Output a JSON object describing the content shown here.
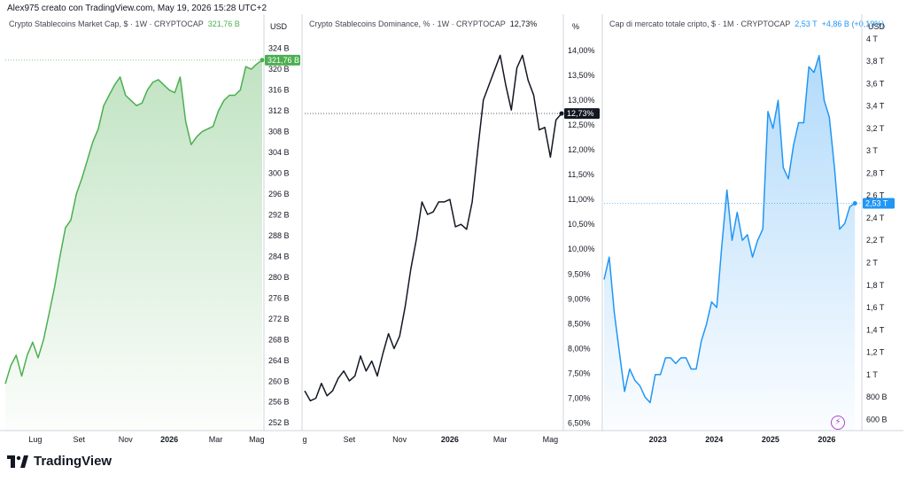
{
  "header": {
    "text": "Alex975 creato con TradingView.com, May 19, 2026 15:28 UTC+2"
  },
  "brand": {
    "name": "TradingView",
    "logo_mark": "17"
  },
  "icons": {
    "bolt": "⚡"
  },
  "chart_data": [
    {
      "type": "area",
      "title": "Crypto Stablecoins Market Cap, $ · 1W · CRYPTOCAP",
      "last_label": "321,76 B",
      "last_value": 321.76,
      "unit": "USD",
      "color": "#4caf50",
      "price_tag_color": "#4caf50",
      "ylim": [
        250.5,
        326.5
      ],
      "yticks": [
        252,
        256,
        260,
        264,
        268,
        272,
        276,
        280,
        284,
        288,
        292,
        296,
        300,
        304,
        308,
        312,
        316,
        320,
        324
      ],
      "ytick_suffix": " B",
      "xlim": [
        0,
        47
      ],
      "x_ticks": [
        {
          "x": 5.5,
          "label": "Lug"
        },
        {
          "x": 13.5,
          "label": "Set"
        },
        {
          "x": 22,
          "label": "Nov"
        },
        {
          "x": 30,
          "label": "2026"
        },
        {
          "x": 38.5,
          "label": "Mar"
        },
        {
          "x": 46,
          "label": "Mag"
        }
      ],
      "values": [
        259.5,
        263,
        265,
        261,
        265,
        267.5,
        264.5,
        268,
        273,
        278,
        284,
        289.5,
        291,
        296,
        299,
        302.5,
        306,
        308.5,
        313,
        315,
        317,
        318.5,
        315,
        314,
        313,
        313.5,
        316,
        317.5,
        318,
        317,
        316,
        315.5,
        318.5,
        310,
        305.5,
        307,
        308,
        308.5,
        309,
        312,
        314,
        315,
        315,
        316,
        320.5,
        320,
        321,
        321.76
      ]
    },
    {
      "type": "line",
      "title": "Crypto Stablecoins Dominance, % · 1W · CRYPTOCAP",
      "last_label": "12,73%",
      "last_value": 12.73,
      "unit": "%",
      "color": "#131722",
      "price_tag_color": "#131722",
      "ylim": [
        6.35,
        14.3
      ],
      "yticks": [
        6.5,
        7.0,
        7.5,
        8.0,
        8.5,
        9.0,
        9.5,
        10.0,
        10.5,
        11.0,
        11.5,
        12.0,
        12.5,
        13.0,
        13.5,
        14.0
      ],
      "ytick_format": "percent2",
      "xlim": [
        0,
        46
      ],
      "x_ticks": [
        {
          "x": 0,
          "label": "g"
        },
        {
          "x": 8,
          "label": "Set"
        },
        {
          "x": 17,
          "label": "Nov"
        },
        {
          "x": 26,
          "label": "2026"
        },
        {
          "x": 35,
          "label": "Mar"
        },
        {
          "x": 44,
          "label": "Mag"
        }
      ],
      "values": [
        7.15,
        6.95,
        7.0,
        7.3,
        7.05,
        7.15,
        7.4,
        7.55,
        7.35,
        7.45,
        7.85,
        7.55,
        7.75,
        7.45,
        7.9,
        8.3,
        8.0,
        8.25,
        8.85,
        9.6,
        10.2,
        10.95,
        10.7,
        10.75,
        10.95,
        10.95,
        11.0,
        10.45,
        10.5,
        10.4,
        10.95,
        12.0,
        13.0,
        13.3,
        13.6,
        13.9,
        13.3,
        12.8,
        13.65,
        13.9,
        13.4,
        13.1,
        12.4,
        12.45,
        11.85,
        12.6,
        12.73
      ]
    },
    {
      "type": "area",
      "title": "Cap di mercato totale cripto, $ · 1M · CRYPTOCAP",
      "last_label": "2,53 T",
      "last_value": 2.53,
      "change_abs": "+4,86 B",
      "change_pct": "(+0,19%)",
      "unit": "USD",
      "color": "#2196f3",
      "price_tag_color": "#2196f3",
      "ylim": [
        0.5,
        4.03
      ],
      "yticks": [
        0.6,
        0.8,
        1.0,
        1.2,
        1.4,
        1.6,
        1.8,
        2.0,
        2.2,
        2.4,
        2.6,
        2.8,
        3.0,
        3.2,
        3.4,
        3.6,
        3.8,
        4.0
      ],
      "ytick_labels": [
        "600 B",
        "800 B",
        "1 T",
        "1,2 T",
        "1,4 T",
        "1,6 T",
        "1,8 T",
        "2 T",
        "2,2 T",
        "2,4 T",
        "2,6 T",
        "2,8 T",
        "3 T",
        "3,2 T",
        "3,4 T",
        "3,6 T",
        "3,8 T",
        "4 T"
      ],
      "xlim": [
        0,
        50
      ],
      "x_ticks": [
        {
          "x": 10.5,
          "label": "2023"
        },
        {
          "x": 21.5,
          "label": "2024"
        },
        {
          "x": 32.5,
          "label": "2025"
        },
        {
          "x": 43.5,
          "label": "2026"
        }
      ],
      "values": [
        1.85,
        2.05,
        1.55,
        1.2,
        0.85,
        1.05,
        0.95,
        0.9,
        0.8,
        0.75,
        1.0,
        1.0,
        1.15,
        1.15,
        1.1,
        1.15,
        1.15,
        1.05,
        1.05,
        1.3,
        1.45,
        1.65,
        1.6,
        2.15,
        2.65,
        2.2,
        2.45,
        2.2,
        2.25,
        2.05,
        2.2,
        2.3,
        3.35,
        3.2,
        3.45,
        2.85,
        2.75,
        3.05,
        3.25,
        3.25,
        3.75,
        3.7,
        3.85,
        3.45,
        3.3,
        2.85,
        2.3,
        2.35,
        2.5,
        2.53
      ]
    }
  ]
}
